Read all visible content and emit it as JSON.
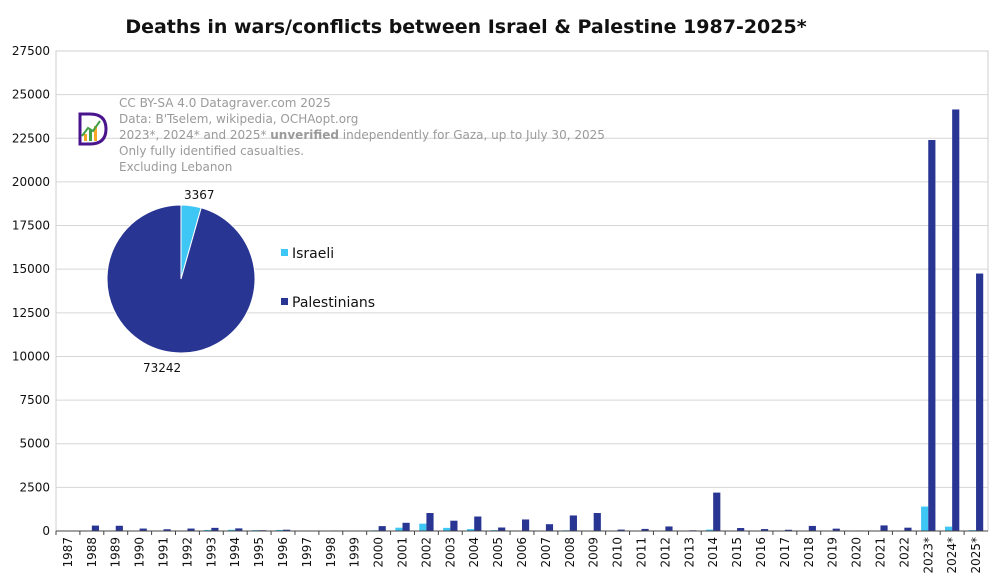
{
  "chart_data": {
    "type": "bar",
    "title": "Deaths in wars/conflicts between Israel & Palestine 1987-2025*",
    "xlabel": "",
    "ylabel": "",
    "ylim": [
      0,
      27500
    ],
    "yticks": [
      0,
      2500,
      5000,
      7500,
      10000,
      12500,
      15000,
      17500,
      20000,
      22500,
      25000,
      27500
    ],
    "grid": true,
    "categories": [
      "1987",
      "1988",
      "1989",
      "1990",
      "1991",
      "1992",
      "1993",
      "1994",
      "1995",
      "1996",
      "1997",
      "1998",
      "1999",
      "2000",
      "2001",
      "2002",
      "2003",
      "2004",
      "2005",
      "2006",
      "2007",
      "2008",
      "2009",
      "2010",
      "2011",
      "2012",
      "2013",
      "2014",
      "2015",
      "2016",
      "2017",
      "2018",
      "2019",
      "2020",
      "2021",
      "2022",
      "2023*",
      "2024*",
      "2025*"
    ],
    "series": [
      {
        "name": "Israeli",
        "color": "#3ec7f4",
        "values": [
          0,
          10,
          30,
          20,
          20,
          30,
          60,
          70,
          50,
          60,
          30,
          10,
          10,
          40,
          190,
          420,
          180,
          110,
          50,
          30,
          10,
          40,
          10,
          10,
          10,
          10,
          10,
          80,
          30,
          15,
          20,
          15,
          10,
          5,
          15,
          30,
          1400,
          250,
          50
        ]
      },
      {
        "name": "Palestinians",
        "color": "#283593",
        "values": [
          20,
          310,
          300,
          140,
          100,
          140,
          180,
          150,
          45,
          75,
          20,
          30,
          10,
          280,
          470,
          1030,
          590,
          830,
          200,
          660,
          390,
          890,
          1030,
          80,
          120,
          260,
          40,
          2200,
          170,
          110,
          70,
          290,
          135,
          30,
          320,
          190,
          22400,
          24150,
          14750
        ]
      }
    ],
    "legend": {
      "placement": "center-left",
      "entries": [
        "Israeli",
        "Palestinians"
      ]
    },
    "annotation_lines": [
      [
        {
          "text": "CC BY-SA 4.0 Datagraver.com 2025",
          "bold": false
        }
      ],
      [
        {
          "text": "Data: B'Tselem, wikipedia, OCHAopt.org",
          "bold": false
        }
      ],
      [
        {
          "text": "2023*, 2024* and 2025* ",
          "bold": false
        },
        {
          "text": "unverified",
          "bold": true
        },
        {
          "text": " independently for Gaza, up to July 30, 2025",
          "bold": false
        }
      ],
      [
        {
          "text": "Only fully identified casualties.",
          "bold": false
        }
      ],
      [
        {
          "text": "Excluding Lebanon",
          "bold": false
        }
      ]
    ],
    "inset_pie": {
      "type": "pie",
      "slices": [
        {
          "name": "Israeli",
          "value": 3367,
          "color": "#3ec7f4",
          "label": "3367"
        },
        {
          "name": "Palestinians",
          "value": 73242,
          "color": "#283593",
          "label": "73242"
        }
      ]
    },
    "logo": {
      "name": "datagraver-logo",
      "letter": "D",
      "colors": [
        "#4a148c",
        "#f9a825",
        "#43a047",
        "#ffffff"
      ]
    }
  }
}
